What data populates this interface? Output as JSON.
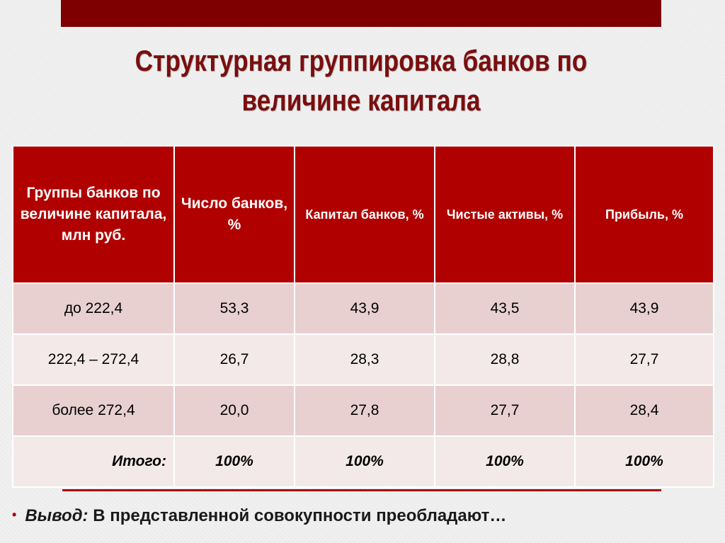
{
  "title": {
    "line1": "Структурная группировка банков по",
    "line2": "величине капитала"
  },
  "table": {
    "headers": [
      "Группы банков по величине капитала, млн руб.",
      "Число банков, %",
      "Капитал банков, %",
      "Чистые активы, %",
      "Прибыль, %"
    ],
    "rows": [
      [
        "до 222,4",
        "53,3",
        "43,9",
        "43,5",
        "43,9"
      ],
      [
        "222,4 – 272,4",
        "26,7",
        "28,3",
        "28,8",
        "27,7"
      ],
      [
        "более 272,4",
        "20,0",
        "27,8",
        "27,7",
        "28,4"
      ]
    ],
    "total": [
      "Итого:",
      "100%",
      "100%",
      "100%",
      "100%"
    ]
  },
  "conclusion": {
    "bullet": "•",
    "label": "Вывод:",
    "text": "В представленной совокупности преобладают…"
  },
  "colors": {
    "banner": "#7f0000",
    "header_bg": "#b00000",
    "title_text": "#7a0e0e",
    "row_odd": "#e8d0d0",
    "row_even": "#f3e9e9"
  }
}
